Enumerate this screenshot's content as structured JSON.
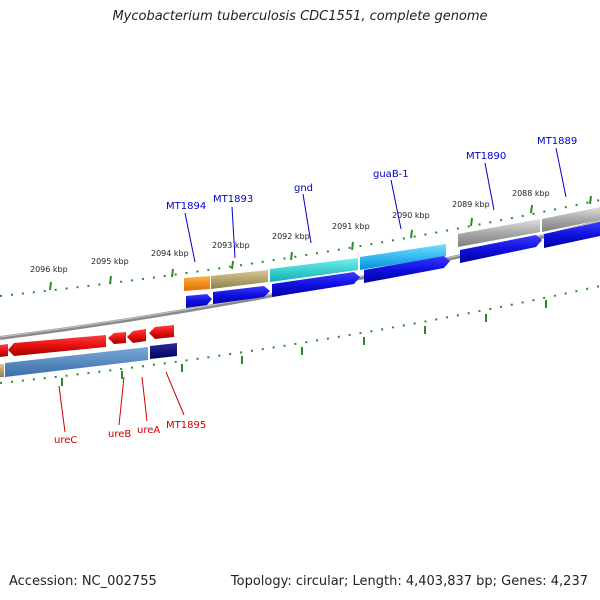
{
  "title": "Mycobacterium tuberculosis CDC1551, complete genome",
  "footer": {
    "accession": "Accession: NC_002755",
    "summary": "Topology: circular; Length: 4,403,837 bp; Genes: 4,237"
  },
  "ruler_labels": [
    "2096 kbp",
    "2095 kbp",
    "2094 kbp",
    "2093 kbp",
    "2092 kbp",
    "2091 kbp",
    "2090 kbp",
    "2089 kbp",
    "2088 kbp"
  ],
  "genes_forward": [
    "MT1894",
    "MT1893",
    "gnd",
    "guaB-1",
    "MT1890",
    "MT1889"
  ],
  "genes_reverse": [
    "ureC",
    "ureB",
    "ureA",
    "MT1895"
  ],
  "colors": {
    "forward_label": "#0000cc",
    "reverse_label": "#cc0000",
    "cds_blue": "#1010e0",
    "cds_red": "#e01010",
    "tick_green": "#2a8a2a",
    "backbone": "#888888"
  }
}
